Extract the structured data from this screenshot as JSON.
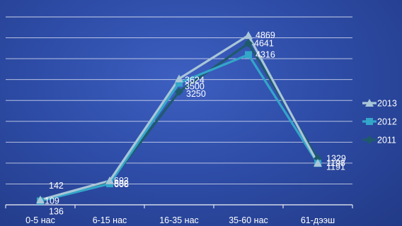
{
  "chart_data": {
    "type": "line",
    "categories": [
      "0-5 нас",
      "6-15 нас",
      "16-35 нас",
      "35-60 нас",
      "61-дээш"
    ],
    "ylim": [
      0,
      5400
    ],
    "grid": true,
    "legend_position": "right",
    "series": [
      {
        "name": "2013",
        "values": [
          142,
          693,
          3624,
          4869,
          1198
        ],
        "color": "#a9c6d8",
        "marker": "triangle"
      },
      {
        "name": "2012",
        "values": [
          109,
          606,
          3500,
          4316,
          1191
        ],
        "color": "#33a6c9",
        "marker": "square"
      },
      {
        "name": "2011",
        "values": [
          136,
          632,
          3250,
          4641,
          1329
        ],
        "color": "#1f5a6c",
        "marker": "diamond"
      }
    ]
  }
}
